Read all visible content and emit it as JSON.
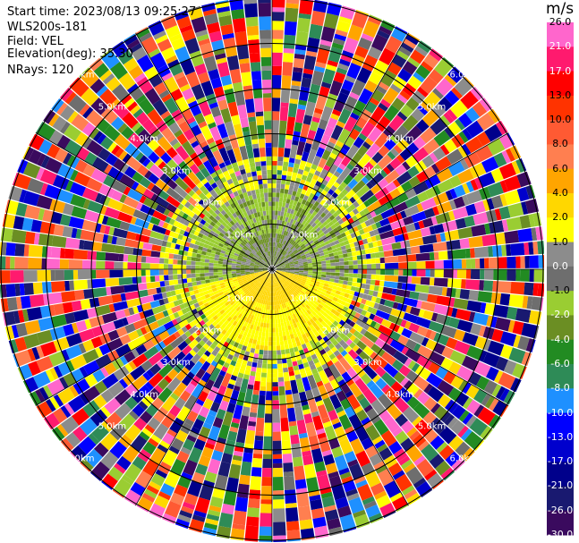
{
  "header": {
    "start_time": "Start time: 2023/08/13 09:25:27",
    "instrument": "WLS200s-181",
    "field": "Field: VEL",
    "elevation": "Elevation(deg): 35.30",
    "nrays": "NRays: 120"
  },
  "colorbar": {
    "unit": "m/s",
    "levels": [
      "26.0",
      "21.0",
      "17.0",
      "13.0",
      "10.0",
      "8.0",
      "6.0",
      "4.0",
      "2.0",
      "1.0",
      "0.0",
      "-1.0",
      "-2.0",
      "-4.0",
      "-6.0",
      "-8.0",
      "-10.0",
      "-13.0",
      "-17.0",
      "-21.0",
      "-26.0",
      "-30.0"
    ],
    "colors": [
      "#ff66cc",
      "#ff1a6e",
      "#ff0000",
      "#ff3300",
      "#ff5a33",
      "#ff7f50",
      "#ffa500",
      "#ffd700",
      "#ffff00",
      "#8c8c8c",
      "#6e6e6e",
      "#9acd32",
      "#6b8e23",
      "#228b22",
      "#2e8b57",
      "#1e90ff",
      "#0000ff",
      "#0000cd",
      "#00008b",
      "#191970",
      "#3a0a5e"
    ]
  },
  "chart_data": {
    "type": "heatmap",
    "projection": "polar PPI",
    "field": "VEL",
    "units": "m/s",
    "nrays": 120,
    "range_rings_km": [
      "1.0km",
      "2.0km",
      "3.0km",
      "4.0km",
      "5.0km",
      "6.0km"
    ],
    "range_ring_values_km": [
      1,
      2,
      3,
      4,
      5,
      6
    ],
    "vmin": -30.0,
    "vmax": 26.0
  }
}
